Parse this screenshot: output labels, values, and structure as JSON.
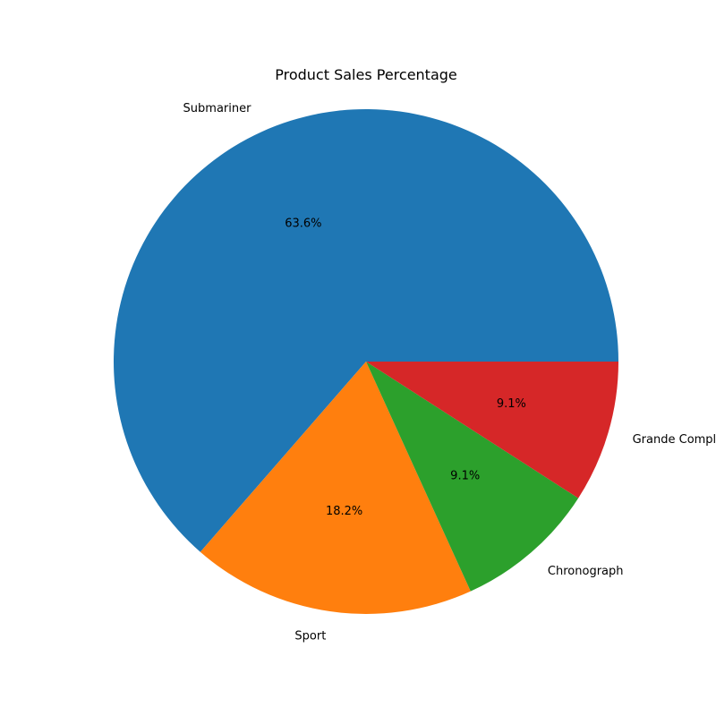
{
  "chart_data": {
    "type": "pie",
    "title": "Product Sales Percentage",
    "categories": [
      "Submariner",
      "Sport",
      "Chronograph",
      "Grande Complication"
    ],
    "values": [
      63.6,
      18.2,
      9.1,
      9.1
    ],
    "value_labels": [
      "63.6%",
      "18.2%",
      "9.1%",
      "9.1%"
    ],
    "colors": [
      "#1f77b4",
      "#ff7f0e",
      "#2ca02c",
      "#d62728"
    ],
    "start_angle_deg": 0,
    "direction": "counterclockwise",
    "legend": "none"
  }
}
